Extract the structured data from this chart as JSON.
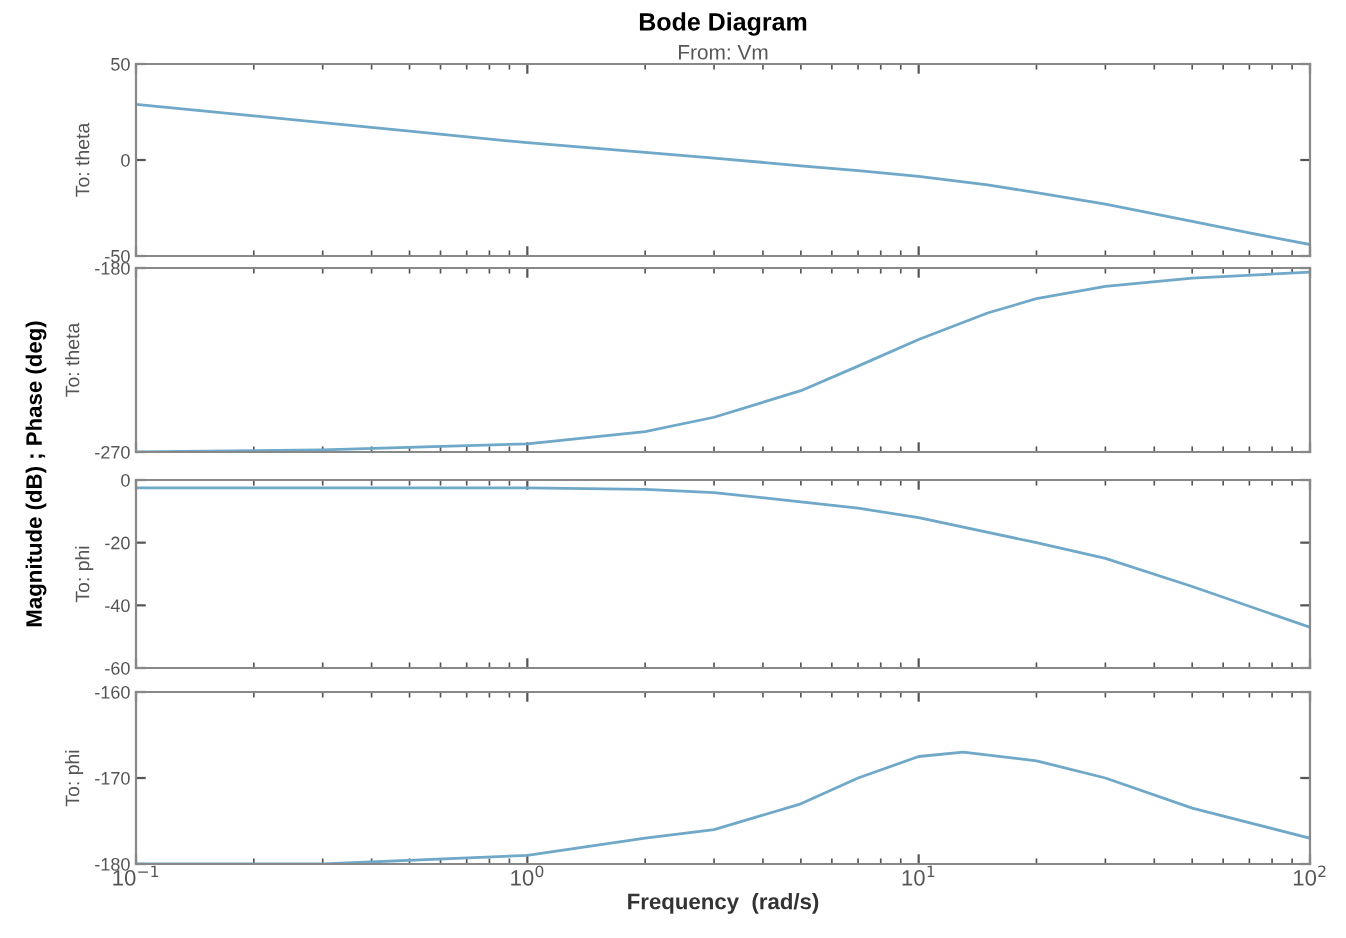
{
  "chart_data": [
    {
      "type": "line",
      "title": "Bode Diagram",
      "subtitle": "From: Vm",
      "ylabel": "To: theta",
      "annotations": [
        "Magnitude (dB) ; Phase (deg)"
      ],
      "log": "x",
      "xlim": [
        0.1,
        100
      ],
      "ylim": [
        -50,
        50
      ],
      "yticks": [
        -50,
        0,
        50
      ],
      "tick_labels": "y",
      "grid": false,
      "legend": false,
      "x": [
        0.1,
        0.2,
        0.5,
        1,
        2,
        3,
        5,
        7,
        10,
        15,
        20,
        30,
        50,
        70,
        100
      ],
      "series": [
        {
          "color": "#6fa8c8",
          "values": [
            29,
            23,
            15,
            9,
            4,
            1,
            -3,
            -5.5,
            -8.5,
            -13,
            -17,
            -23,
            -32,
            -38,
            -44
          ]
        }
      ]
    },
    {
      "type": "line",
      "ylabel": "To: theta",
      "log": "x",
      "xlim": [
        0.1,
        100
      ],
      "ylim": [
        -270,
        -180
      ],
      "yticks": [
        -270,
        -180
      ],
      "tick_labels": "y",
      "grid": false,
      "legend": false,
      "x": [
        0.1,
        0.3,
        1,
        2,
        3,
        5,
        7,
        10,
        15,
        20,
        30,
        50,
        100
      ],
      "series": [
        {
          "color": "#6fa8c8",
          "values": [
            -270,
            -269,
            -266,
            -260,
            -253,
            -240,
            -228,
            -215,
            -202,
            -195,
            -189,
            -185,
            -182
          ]
        }
      ]
    },
    {
      "type": "line",
      "ylabel": "To: phi",
      "log": "x",
      "xlim": [
        0.1,
        100
      ],
      "ylim": [
        -60,
        0
      ],
      "yticks": [
        -60,
        -40,
        -20,
        0
      ],
      "tick_labels": "y",
      "grid": false,
      "legend": false,
      "x": [
        0.1,
        1,
        2,
        3,
        5,
        7,
        10,
        20,
        30,
        50,
        100
      ],
      "series": [
        {
          "color": "#6fa8c8",
          "values": [
            -2.5,
            -2.5,
            -3,
            -4,
            -7,
            -9,
            -12,
            -20,
            -25,
            -34,
            -47
          ]
        }
      ]
    },
    {
      "type": "line",
      "ylabel": "To: phi",
      "xlabel": "Frequency  (rad/s)",
      "log": "x",
      "xlim": [
        0.1,
        100
      ],
      "xticks": [
        {
          "value": 0.1,
          "label": "10$^{−1}$"
        },
        {
          "value": 1,
          "label": "10$^{0}$"
        },
        {
          "value": 10,
          "label": "10$^{1}$"
        },
        {
          "value": 100,
          "label": "10$^{2}$"
        }
      ],
      "ylim": [
        -180,
        -160
      ],
      "yticks": [
        -180,
        -170,
        -160
      ],
      "grid": false,
      "legend": false,
      "x": [
        0.1,
        0.3,
        1,
        2,
        3,
        5,
        7,
        10,
        13,
        20,
        30,
        50,
        100
      ],
      "series": [
        {
          "color": "#6fa8c8",
          "values": [
            -180,
            -180,
            -179,
            -177,
            -176,
            -173,
            -170,
            -167.5,
            -167,
            -168,
            -170,
            -173.5,
            -177
          ]
        }
      ]
    }
  ]
}
